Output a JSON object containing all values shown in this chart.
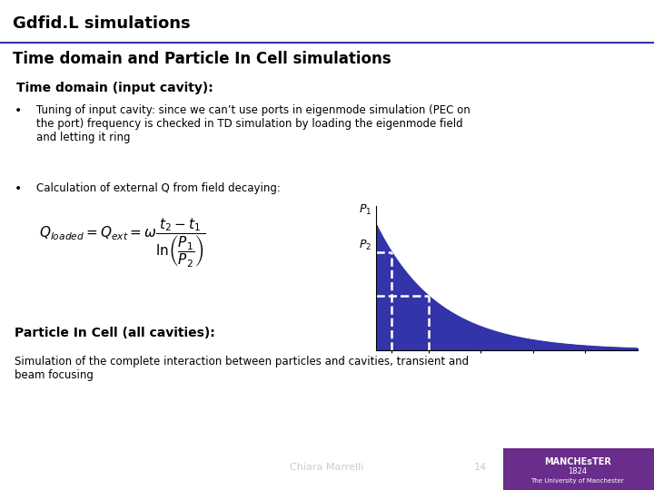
{
  "title": "Gdfid.L simulations",
  "subtitle": "Time domain and Particle In Cell simulations",
  "section1_title": "Time domain (input cavity):",
  "bullet1": "Tuning of input cavity: since we can’t use ports in eigenmode simulation (PEC on\nthe port) frequency is checked in TD simulation by loading the eigenmode field\nand letting it ring",
  "bullet2": "Calculation of external Q from field decaying:",
  "section2_title": "Particle In Cell (all cavities):",
  "section2_text": "Simulation of the complete interaction between particles and cavities, transient and\nbeam focusing",
  "footer_text": "Chiara Marrelli",
  "footer_page": "14",
  "footer_bg": "#3333aa",
  "manchester_bg": "#6b2d8b",
  "title_color": "#000000",
  "subtitle_color": "#000000",
  "section_color": "#000000",
  "curve_fill_color": "#3333aa",
  "slide_bg": "#ffffff",
  "header_line_color": "#3333aa",
  "t1": 0.3,
  "t2": 1.0,
  "decay_const": 1.2
}
